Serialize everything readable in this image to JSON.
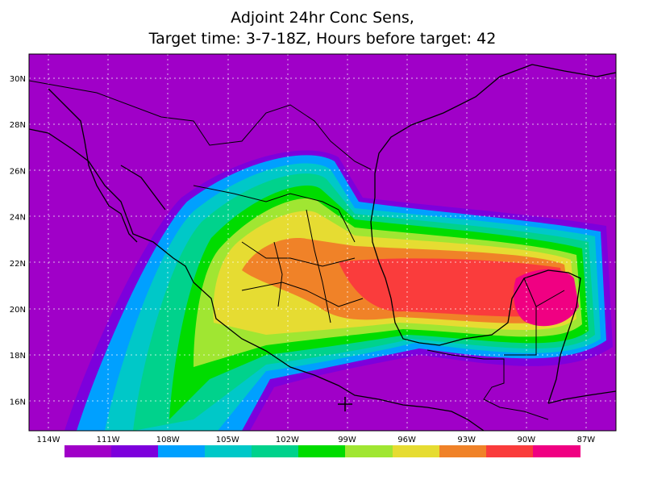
{
  "title": {
    "line1": "Adjoint 24hr Conc Sens,",
    "line2": "Target time: 3-7-18Z, Hours before target: 42"
  },
  "map": {
    "lat_labels": [
      "30N",
      "28N",
      "26N",
      "24N",
      "22N",
      "20N",
      "18N",
      "16N"
    ],
    "lon_labels": [
      "114W",
      "111W",
      "108W",
      "105W",
      "102W",
      "99W",
      "96W",
      "93W",
      "90W",
      "87W"
    ]
  }
}
